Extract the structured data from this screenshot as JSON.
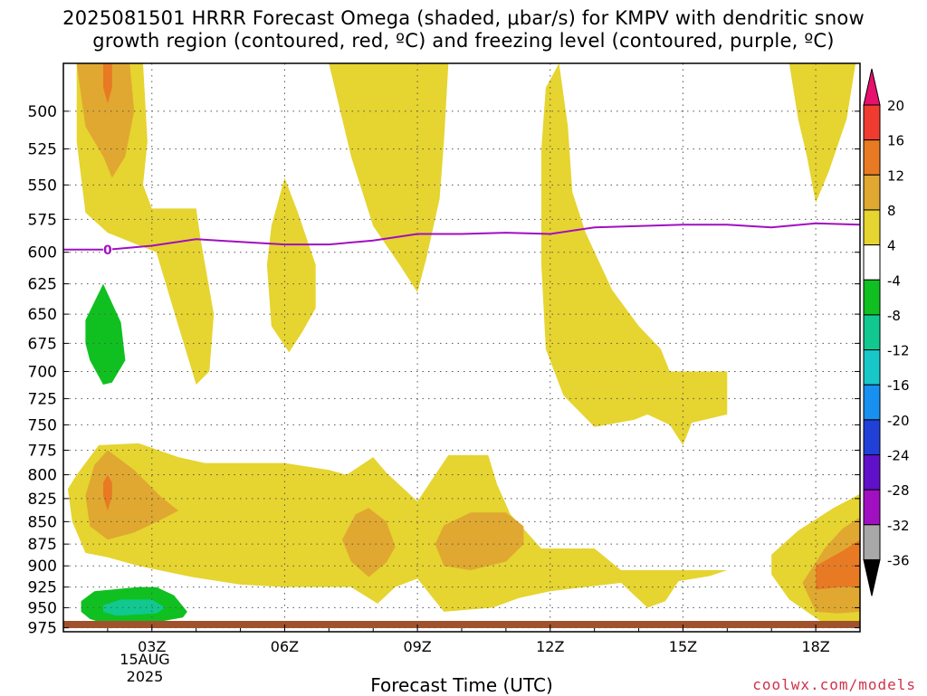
{
  "title": {
    "line1": "2025081501 HRRR Forecast Omega (shaded, μbar/s) for KMPV with dendritic snow",
    "line2": "growth region (contoured, red, ºC) and freezing level (contoured, purple, ºC)"
  },
  "credit": "coolwx.com/models",
  "chart_data": {
    "type": "time-height contour",
    "xlabel": "Forecast Time (UTC)",
    "ylabel": "",
    "x_ticks": [
      {
        "hour": 3,
        "label": "03Z"
      },
      {
        "hour": 6,
        "label": "06Z"
      },
      {
        "hour": 9,
        "label": "09Z"
      },
      {
        "hour": 12,
        "label": "12Z"
      },
      {
        "hour": 15,
        "label": "15Z"
      },
      {
        "hour": 18,
        "label": "18Z"
      }
    ],
    "date_label": [
      "15AUG",
      "2025"
    ],
    "xlim_hours": [
      1,
      19
    ],
    "y_pressure_ticks": [
      500,
      525,
      550,
      575,
      600,
      625,
      650,
      675,
      700,
      725,
      750,
      775,
      800,
      825,
      850,
      875,
      900,
      925,
      950,
      975
    ],
    "y_axis": "pressure (inverted, log scale)",
    "ylim_pressure": [
      980,
      470
    ],
    "grid": true,
    "colorbar": {
      "ticks": [
        "20",
        "16",
        "12",
        "8",
        "4",
        "-4",
        "-8",
        "-12",
        "-16",
        "-20",
        "-24",
        "-28",
        "-32",
        "-36"
      ],
      "colors": [
        "#e8106e",
        "#f03c30",
        "#e87a24",
        "#e0a830",
        "#e6d430",
        "#ffffff",
        "#10c020",
        "#10c890",
        "#18c8c8",
        "#1890f0",
        "#2040d8",
        "#6010c8",
        "#a010c0",
        "#a8a8a8",
        "#000000"
      ]
    },
    "freezing_level": {
      "label": "0",
      "color": "#a010c0",
      "points": [
        [
          1.0,
          598
        ],
        [
          2.0,
          598
        ],
        [
          3.0,
          595
        ],
        [
          4.0,
          590
        ],
        [
          5.0,
          592
        ],
        [
          6.0,
          594
        ],
        [
          7.0,
          594
        ],
        [
          8.0,
          591
        ],
        [
          9.0,
          586
        ],
        [
          10.0,
          586
        ],
        [
          11.0,
          585
        ],
        [
          12.0,
          586
        ],
        [
          13.0,
          581
        ],
        [
          14.0,
          580
        ],
        [
          15.0,
          579
        ],
        [
          16.0,
          579
        ],
        [
          17.0,
          581
        ],
        [
          18.0,
          578
        ],
        [
          19.0,
          579
        ]
      ]
    },
    "ground_color": "#a0522d",
    "omega_regions": [
      {
        "level": "4 to 8",
        "color": "#e6d430",
        "points": [
          [
            1.3,
            470
          ],
          [
            2.8,
            470
          ],
          [
            2.9,
            520
          ],
          [
            2.8,
            550
          ],
          [
            3.0,
            567
          ],
          [
            4.0,
            567
          ],
          [
            4.1,
            590
          ],
          [
            4.4,
            650
          ],
          [
            4.3,
            700
          ],
          [
            4.0,
            712
          ],
          [
            3.6,
            660
          ],
          [
            3.1,
            600
          ],
          [
            2.0,
            585
          ],
          [
            1.5,
            570
          ],
          [
            1.3,
            520
          ]
        ]
      },
      {
        "level": "4 to 8",
        "color": "#e6d430",
        "points": [
          [
            6.0,
            545
          ],
          [
            6.3,
            570
          ],
          [
            6.7,
            610
          ],
          [
            6.7,
            645
          ],
          [
            6.4,
            665
          ],
          [
            6.1,
            683
          ],
          [
            5.7,
            660
          ],
          [
            5.6,
            610
          ],
          [
            5.7,
            580
          ]
        ]
      },
      {
        "level": "4 to 8",
        "color": "#e6d430",
        "points": [
          [
            7.0,
            470
          ],
          [
            9.7,
            470
          ],
          [
            9.6,
            520
          ],
          [
            9.5,
            560
          ],
          [
            9.2,
            605
          ],
          [
            9.0,
            632
          ],
          [
            8.6,
            610
          ],
          [
            8.0,
            580
          ],
          [
            7.5,
            530
          ]
        ]
      },
      {
        "level": "4 to 8",
        "color": "#e6d430",
        "points": [
          [
            11.8,
            525
          ],
          [
            11.9,
            485
          ],
          [
            12.2,
            470
          ],
          [
            12.4,
            510
          ],
          [
            12.5,
            555
          ],
          [
            12.8,
            585
          ],
          [
            13.4,
            630
          ],
          [
            14.0,
            660
          ],
          [
            14.5,
            680
          ],
          [
            14.7,
            700
          ],
          [
            16.0,
            700
          ],
          [
            16.0,
            740
          ],
          [
            15.2,
            748
          ],
          [
            15.0,
            770
          ],
          [
            14.7,
            750
          ],
          [
            14.2,
            740
          ],
          [
            13.9,
            745
          ],
          [
            13.0,
            752
          ],
          [
            12.3,
            722
          ],
          [
            11.9,
            680
          ],
          [
            11.8,
            610
          ]
        ]
      },
      {
        "level": "4 to 8",
        "color": "#e6d430",
        "points": [
          [
            17.4,
            470
          ],
          [
            18.9,
            470
          ],
          [
            18.7,
            505
          ],
          [
            18.3,
            540
          ],
          [
            18.0,
            563
          ],
          [
            17.8,
            530
          ],
          [
            17.6,
            505
          ]
        ]
      },
      {
        "level": "4 to 8",
        "color": "#e6d430",
        "points": [
          [
            1.3,
            800
          ],
          [
            1.8,
            770
          ],
          [
            2.7,
            768
          ],
          [
            3.6,
            782
          ],
          [
            4.2,
            788
          ],
          [
            6.0,
            788
          ],
          [
            7.0,
            795
          ],
          [
            7.4,
            800
          ],
          [
            8.0,
            782
          ],
          [
            8.3,
            798
          ],
          [
            9.0,
            828
          ],
          [
            9.4,
            800
          ],
          [
            9.7,
            780
          ],
          [
            10.6,
            780
          ],
          [
            10.8,
            810
          ],
          [
            11.1,
            842
          ],
          [
            11.8,
            880
          ],
          [
            13.0,
            880
          ],
          [
            13.6,
            905
          ],
          [
            14.5,
            905
          ],
          [
            16.0,
            905
          ],
          [
            15.6,
            912
          ],
          [
            14.9,
            918
          ],
          [
            14.6,
            942
          ],
          [
            14.2,
            950
          ],
          [
            13.6,
            920
          ],
          [
            12.0,
            930
          ],
          [
            11.3,
            938
          ],
          [
            10.7,
            950
          ],
          [
            9.6,
            955
          ],
          [
            9.3,
            935
          ],
          [
            9.0,
            915
          ],
          [
            8.5,
            925
          ],
          [
            8.1,
            945
          ],
          [
            7.5,
            925
          ],
          [
            6.0,
            925
          ],
          [
            5.0,
            922
          ],
          [
            3.9,
            913
          ],
          [
            2.7,
            900
          ],
          [
            2.0,
            890
          ],
          [
            1.5,
            885
          ],
          [
            1.2,
            850
          ],
          [
            1.1,
            815
          ]
        ]
      },
      {
        "level": "4 to 8",
        "color": "#e6d430",
        "points": [
          [
            17.0,
            887
          ],
          [
            17.6,
            860
          ],
          [
            18.4,
            835
          ],
          [
            19.0,
            820
          ],
          [
            19.0,
            970
          ],
          [
            18.2,
            970
          ],
          [
            17.4,
            940
          ],
          [
            17.0,
            910
          ]
        ]
      },
      {
        "level": "8 to 12",
        "color": "#e0a830",
        "points": [
          [
            1.3,
            470
          ],
          [
            2.5,
            470
          ],
          [
            2.6,
            500
          ],
          [
            2.4,
            530
          ],
          [
            2.1,
            545
          ],
          [
            1.9,
            530
          ],
          [
            1.5,
            510
          ],
          [
            1.4,
            490
          ]
        ]
      },
      {
        "level": "8 to 12",
        "color": "#e0a830",
        "points": [
          [
            1.5,
            822
          ],
          [
            1.7,
            790
          ],
          [
            2.0,
            775
          ],
          [
            2.6,
            795
          ],
          [
            3.2,
            823
          ],
          [
            3.6,
            838
          ],
          [
            3.2,
            848
          ],
          [
            2.6,
            862
          ],
          [
            2.0,
            870
          ],
          [
            1.6,
            855
          ]
        ]
      },
      {
        "level": "8 to 12",
        "color": "#e0a830",
        "points": [
          [
            7.3,
            870
          ],
          [
            7.6,
            842
          ],
          [
            7.9,
            835
          ],
          [
            8.3,
            850
          ],
          [
            8.5,
            878
          ],
          [
            8.3,
            896
          ],
          [
            7.9,
            913
          ],
          [
            7.5,
            895
          ]
        ]
      },
      {
        "level": "8 to 12",
        "color": "#e0a830",
        "points": [
          [
            9.4,
            875
          ],
          [
            9.6,
            854
          ],
          [
            10.2,
            840
          ],
          [
            11.0,
            840
          ],
          [
            11.4,
            855
          ],
          [
            11.4,
            875
          ],
          [
            11.0,
            895
          ],
          [
            10.2,
            905
          ],
          [
            9.6,
            900
          ]
        ]
      },
      {
        "level": "8 to 12",
        "color": "#e0a830",
        "points": [
          [
            18.2,
            880
          ],
          [
            18.6,
            858
          ],
          [
            19.0,
            845
          ],
          [
            19.0,
            955
          ],
          [
            18.5,
            957
          ],
          [
            18.0,
            955
          ],
          [
            17.7,
            920
          ]
        ]
      },
      {
        "level": "12 to 16",
        "color": "#e87a24",
        "points": [
          [
            1.9,
            470
          ],
          [
            2.1,
            470
          ],
          [
            2.1,
            485
          ],
          [
            2.0,
            495
          ],
          [
            1.9,
            485
          ]
        ]
      },
      {
        "level": "12 to 16",
        "color": "#e87a24",
        "points": [
          [
            1.9,
            808
          ],
          [
            2.0,
            800
          ],
          [
            2.1,
            808
          ],
          [
            2.1,
            822
          ],
          [
            2.0,
            838
          ],
          [
            1.9,
            822
          ]
        ]
      },
      {
        "level": "12 to 16",
        "color": "#e87a24",
        "points": [
          [
            18.0,
            900
          ],
          [
            18.6,
            883
          ],
          [
            19.0,
            870
          ],
          [
            19.0,
            925
          ],
          [
            18.6,
            925
          ],
          [
            18.0,
            928
          ]
        ]
      },
      {
        "level": "-8 to -4",
        "color": "#10c020",
        "points": [
          [
            1.5,
            655
          ],
          [
            1.9,
            625
          ],
          [
            2.3,
            657
          ],
          [
            2.4,
            690
          ],
          [
            2.1,
            710
          ],
          [
            1.9,
            712
          ],
          [
            1.6,
            690
          ],
          [
            1.5,
            675
          ]
        ]
      },
      {
        "level": "-8 to -4",
        "color": "#10c020",
        "points": [
          [
            1.4,
            942
          ],
          [
            1.7,
            930
          ],
          [
            2.7,
            925
          ],
          [
            3.1,
            925
          ],
          [
            3.5,
            935
          ],
          [
            3.8,
            955
          ],
          [
            3.7,
            962
          ],
          [
            3.0,
            969
          ],
          [
            2.0,
            971
          ],
          [
            1.6,
            964
          ],
          [
            1.4,
            955
          ]
        ]
      },
      {
        "level": "-12 to -8",
        "color": "#10c890",
        "points": [
          [
            1.9,
            947
          ],
          [
            2.3,
            940
          ],
          [
            3.0,
            940
          ],
          [
            3.3,
            950
          ],
          [
            3.1,
            957
          ],
          [
            2.2,
            960
          ],
          [
            1.9,
            955
          ]
        ]
      }
    ]
  }
}
